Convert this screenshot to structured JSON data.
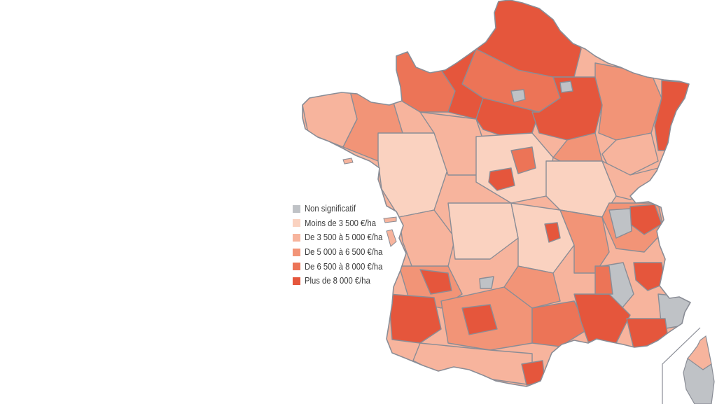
{
  "legend": {
    "items": [
      {
        "label": "Non significatif",
        "color": "#bfc2c6"
      },
      {
        "label": "Moins de 3 500 €/ha",
        "color": "#fad2c0"
      },
      {
        "label": "De 3 500 à 5 000 €/ha",
        "color": "#f7b49d"
      },
      {
        "label": "De 5 000 à 6 500 €/ha",
        "color": "#f29477"
      },
      {
        "label": "De 6 500 à 8 000 €/ha",
        "color": "#ec7457"
      },
      {
        "label": "Plus de 8 000 €/ha",
        "color": "#e5563c"
      }
    ]
  },
  "map": {
    "border_color": "#8a8d96",
    "regions": [
      {
        "name": "Hauts-de-France coast",
        "class": 5
      },
      {
        "name": "Picardie",
        "class": 5
      },
      {
        "name": "Normandie",
        "class": 5
      },
      {
        "name": "Île-de-France",
        "class": 5
      },
      {
        "name": "Champagne",
        "class": 4
      },
      {
        "name": "Lorraine",
        "class": 3
      },
      {
        "name": "Alsace",
        "class": 4
      },
      {
        "name": "Bretagne",
        "class": 2
      },
      {
        "name": "Pays de la Loire",
        "class": 1
      },
      {
        "name": "Centre",
        "class": 2
      },
      {
        "name": "Bourgogne",
        "class": 1
      },
      {
        "name": "Franche-Comté",
        "class": 2
      },
      {
        "name": "Poitou-Charentes",
        "class": 2
      },
      {
        "name": "Limousin",
        "class": 1
      },
      {
        "name": "Auvergne",
        "class": 1
      },
      {
        "name": "Rhône-Alpes",
        "class": 2
      },
      {
        "name": "Aquitaine",
        "class": 3
      },
      {
        "name": "Landes",
        "class": 5
      },
      {
        "name": "Midi-Pyrénées",
        "class": 3
      },
      {
        "name": "Languedoc",
        "class": 4
      },
      {
        "name": "Provence",
        "class": 5
      },
      {
        "name": "Alpes",
        "class": 0
      },
      {
        "name": "Corse",
        "class": 0
      }
    ]
  }
}
